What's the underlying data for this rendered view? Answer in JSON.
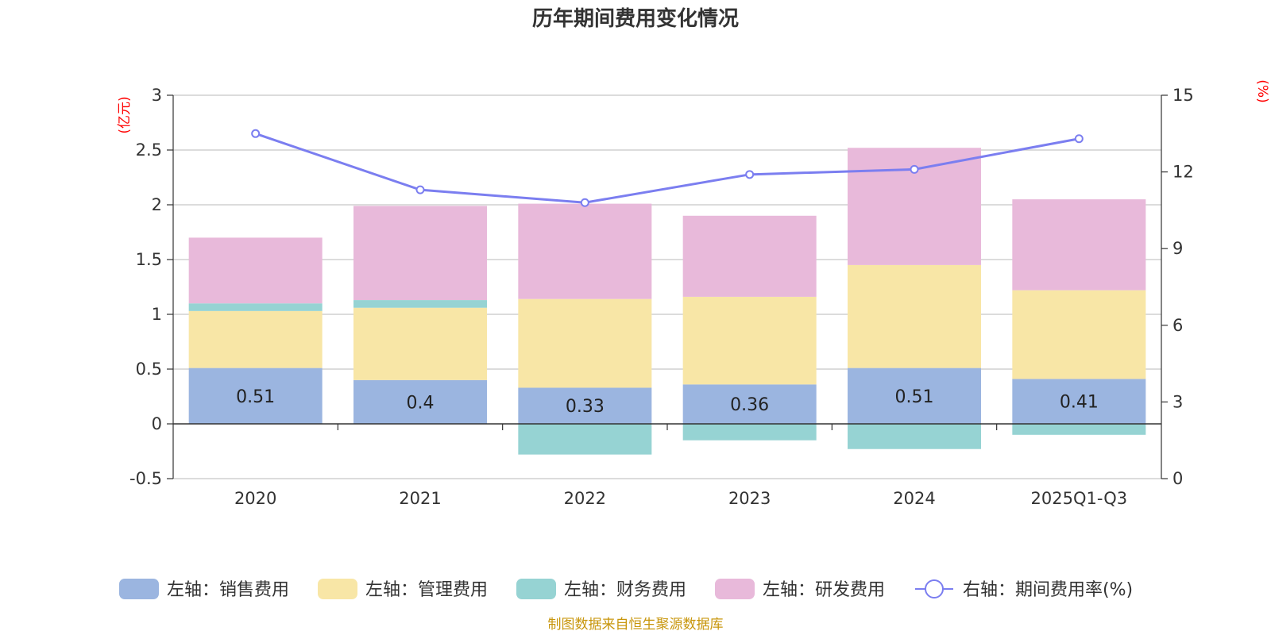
{
  "chart_data": {
    "type": "bar",
    "title": "历年期间费用变化情况",
    "categories": [
      "2020",
      "2021",
      "2022",
      "2023",
      "2024",
      "2025Q1-Q3"
    ],
    "left_axis": {
      "unit": "(亿元)",
      "ylim": [
        -0.5,
        3
      ],
      "ticks": [
        "3",
        "2.5",
        "2",
        "1.5",
        "1",
        "0.5",
        "0",
        "-0.5"
      ]
    },
    "right_axis": {
      "unit": "(%)",
      "ylim": [
        0,
        15
      ],
      "ticks": [
        "15",
        "12",
        "9",
        "6",
        "3",
        "0"
      ]
    },
    "series": [
      {
        "name": "左轴：销售费用",
        "type": "stacked-bar",
        "color": "#9bb5e0",
        "values": [
          0.51,
          0.4,
          0.33,
          0.36,
          0.51,
          0.41
        ],
        "labels": [
          "0.51",
          "0.4",
          "0.33",
          "0.36",
          "0.51",
          "0.41"
        ]
      },
      {
        "name": "左轴：管理费用",
        "type": "stacked-bar",
        "color": "#f8e6a6",
        "values": [
          0.52,
          0.66,
          0.81,
          0.8,
          0.94,
          0.81
        ]
      },
      {
        "name": "左轴：财务费用",
        "type": "stacked-bar",
        "color": "#96d3d3",
        "values": [
          0.07,
          0.07,
          -0.28,
          -0.15,
          -0.23,
          -0.1
        ]
      },
      {
        "name": "左轴：研发费用",
        "type": "stacked-bar",
        "color": "#e8b9da",
        "values": [
          0.6,
          0.86,
          0.87,
          0.74,
          1.07,
          0.83
        ]
      },
      {
        "name": "右轴：期间费用率(%)",
        "type": "line",
        "color": "#7b7ef0",
        "values": [
          13.5,
          11.3,
          10.8,
          11.9,
          12.1,
          13.3
        ]
      }
    ]
  },
  "footer": "制图数据来自恒生聚源数据库"
}
